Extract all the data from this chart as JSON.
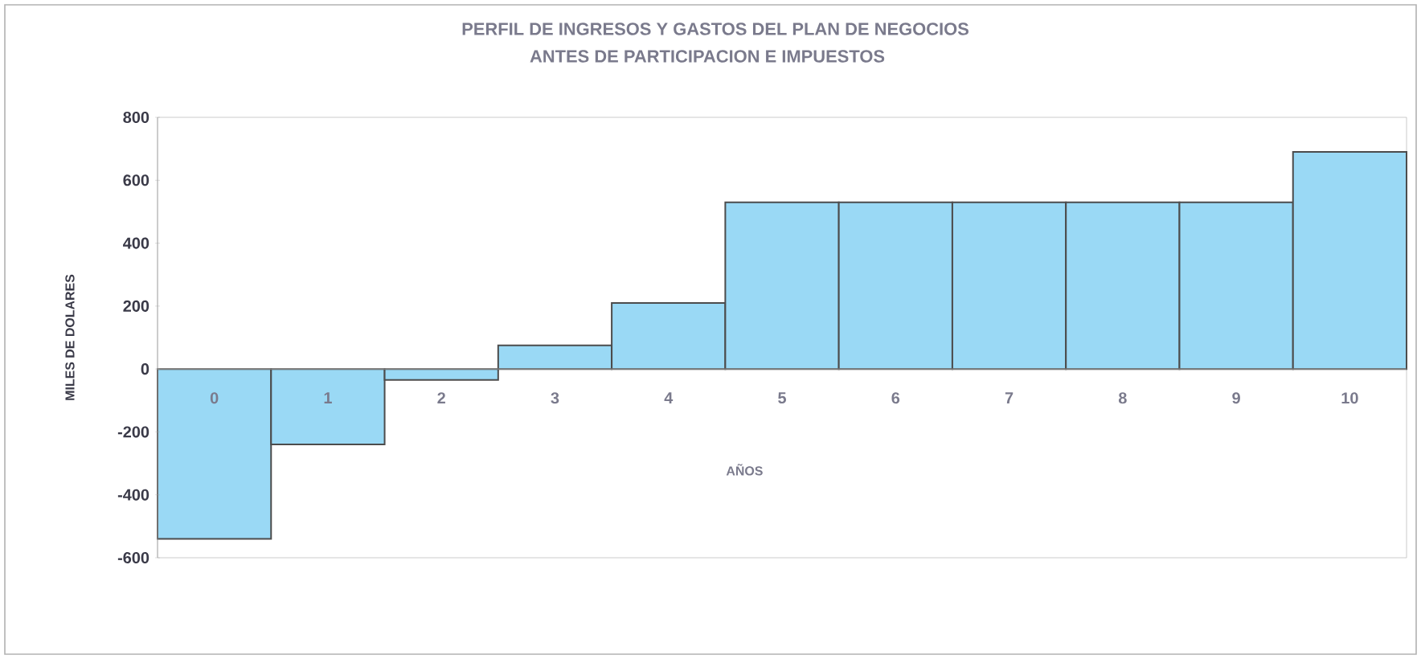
{
  "chart_data": {
    "type": "bar",
    "title": "PERFIL DE INGRESOS Y GASTOS DEL PLAN DE NEGOCIOS",
    "subtitle": "ANTES DE PARTICIPACION E IMPUESTOS",
    "xlabel": "AÑOS",
    "ylabel": "MILES DE DOLARES",
    "categories": [
      "0",
      "1",
      "2",
      "3",
      "4",
      "5",
      "6",
      "7",
      "8",
      "9",
      "10"
    ],
    "values": [
      -540,
      -240,
      -35,
      75,
      210,
      530,
      530,
      530,
      530,
      530,
      690
    ],
    "color": "#9ad9f5",
    "ylim": [
      -600,
      800
    ],
    "yticks": [
      -600,
      -400,
      -200,
      0,
      200,
      400,
      600,
      800
    ],
    "grid": false
  }
}
